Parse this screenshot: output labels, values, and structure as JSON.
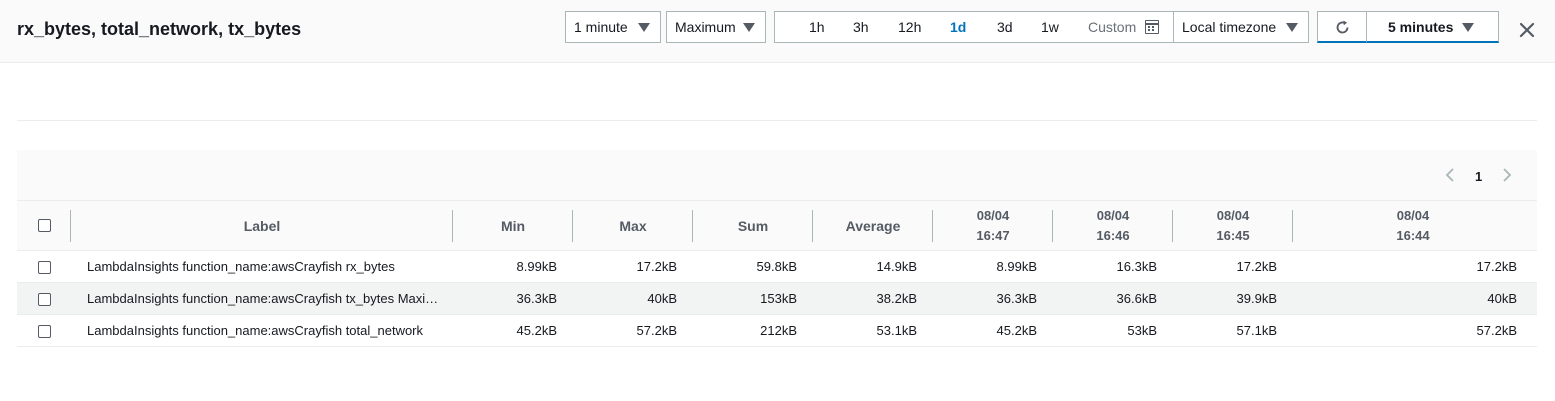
{
  "header": {
    "title": "rx_bytes, total_network, tx_bytes",
    "period": "1 minute",
    "statistic": "Maximum",
    "ranges": [
      "1h",
      "3h",
      "12h",
      "1d",
      "3d",
      "1w"
    ],
    "active_range": "1d",
    "custom_label": "Custom",
    "timezone": "Local timezone",
    "refresh_interval": "5 minutes",
    "accent_color": "#0073bb"
  },
  "pagination": {
    "current_page": "1"
  },
  "table": {
    "columns": {
      "label": "Label",
      "min": "Min",
      "max": "Max",
      "sum": "Sum",
      "average": "Average",
      "t1_date": "08/04",
      "t1_time": "16:47",
      "t2_date": "08/04",
      "t2_time": "16:46",
      "t3_date": "08/04",
      "t3_time": "16:45",
      "t4_date": "08/04",
      "t4_time": "16:44"
    },
    "rows": [
      {
        "label": "LambdaInsights function_name:awsCrayfish rx_bytes",
        "min": "8.99kB",
        "max": "17.2kB",
        "sum": "59.8kB",
        "average": "14.9kB",
        "t1": "8.99kB",
        "t2": "16.3kB",
        "t3": "17.2kB",
        "t4": "17.2kB"
      },
      {
        "label": "LambdaInsights function_name:awsCrayfish tx_bytes Maximum",
        "min": "36.3kB",
        "max": "40kB",
        "sum": "153kB",
        "average": "38.2kB",
        "t1": "36.3kB",
        "t2": "36.6kB",
        "t3": "39.9kB",
        "t4": "40kB"
      },
      {
        "label": "LambdaInsights function_name:awsCrayfish total_network",
        "min": "45.2kB",
        "max": "57.2kB",
        "sum": "212kB",
        "average": "53.1kB",
        "t1": "45.2kB",
        "t2": "53kB",
        "t3": "57.1kB",
        "t4": "57.2kB"
      }
    ]
  }
}
